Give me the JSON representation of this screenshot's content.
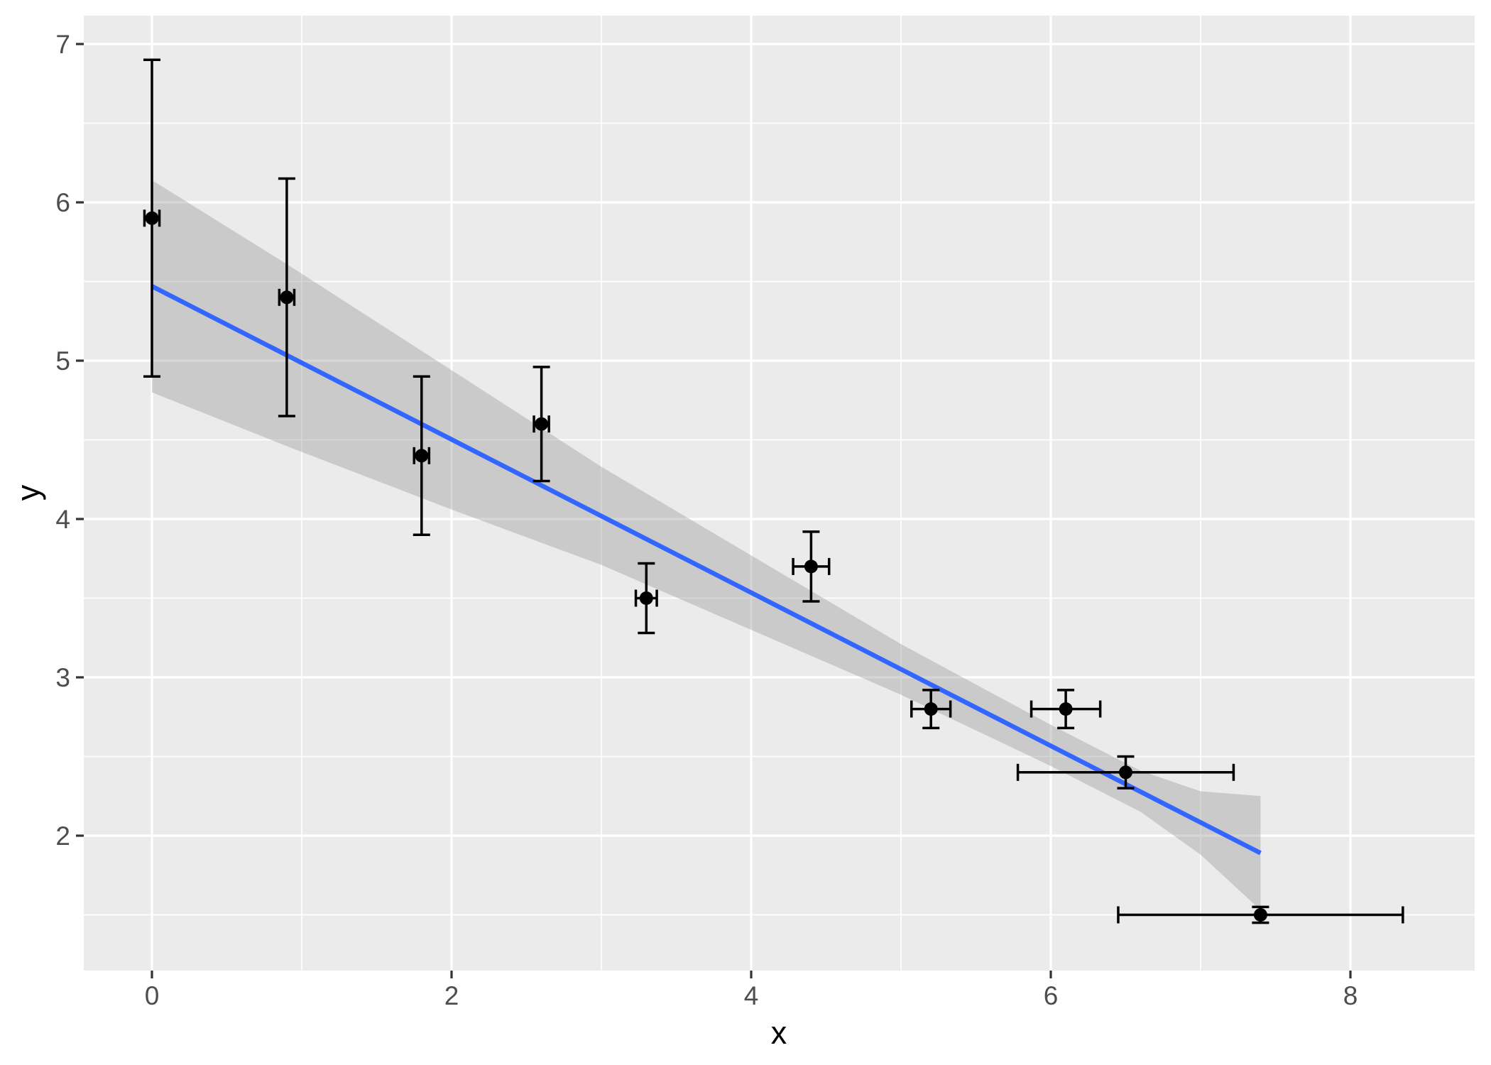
{
  "chart_data": {
    "type": "scatter",
    "title": "",
    "xlabel": "x",
    "ylabel": "y",
    "legend": "none",
    "grid": "major+minor",
    "panel_bg": "#EBEBEB",
    "grid_color": "#FFFFFF",
    "tick_color": "#333333",
    "tick_label_color": "#4D4D4D",
    "axis_title_color": "#000000",
    "point_color": "#000000",
    "xlim": [
      -0.455,
      8.83
    ],
    "ylim": [
      1.15,
      7.18
    ],
    "x_ticks": [
      0,
      2,
      4,
      6,
      8
    ],
    "x_minor_ticks": [
      1,
      3,
      5,
      7
    ],
    "y_ticks": [
      2,
      3,
      4,
      5,
      6,
      7
    ],
    "y_minor_ticks": [
      1.5,
      2.5,
      3.5,
      4.5,
      5.5,
      6.5
    ],
    "points": [
      {
        "x": 0.0,
        "y": 5.9,
        "xerr": 0.05,
        "yerr": 1.0
      },
      {
        "x": 0.9,
        "y": 5.4,
        "xerr": 0.05,
        "yerr": 0.75
      },
      {
        "x": 1.8,
        "y": 4.4,
        "xerr": 0.05,
        "yerr": 0.5
      },
      {
        "x": 2.6,
        "y": 4.6,
        "xerr": 0.05,
        "yerr": 0.36
      },
      {
        "x": 3.3,
        "y": 3.5,
        "xerr": 0.07,
        "yerr": 0.22
      },
      {
        "x": 4.4,
        "y": 3.7,
        "xerr": 0.12,
        "yerr": 0.22
      },
      {
        "x": 5.2,
        "y": 2.8,
        "xerr": 0.13,
        "yerr": 0.12
      },
      {
        "x": 6.1,
        "y": 2.8,
        "xerr": 0.23,
        "yerr": 0.12
      },
      {
        "x": 6.5,
        "y": 2.4,
        "xerr": 0.72,
        "yerr": 0.1
      },
      {
        "x": 7.4,
        "y": 1.5,
        "xerr": 0.95,
        "yerr": 0.05
      }
    ],
    "regression_line": {
      "color": "#3366FF",
      "x1": 0.0,
      "y1": 5.47,
      "x2": 7.4,
      "y2": 1.89
    },
    "confidence_band": {
      "fill": "#999999",
      "opacity": 0.4,
      "x": [
        0.0,
        0.9,
        2.0,
        3.0,
        4.0,
        5.0,
        6.0,
        6.6,
        7.0,
        7.4
      ],
      "hi": [
        6.14,
        5.61,
        4.94,
        4.33,
        3.77,
        3.21,
        2.7,
        2.41,
        2.28,
        2.25
      ],
      "lo": [
        4.8,
        4.46,
        4.06,
        3.71,
        3.3,
        2.89,
        2.44,
        2.15,
        1.88,
        1.53
      ]
    }
  }
}
